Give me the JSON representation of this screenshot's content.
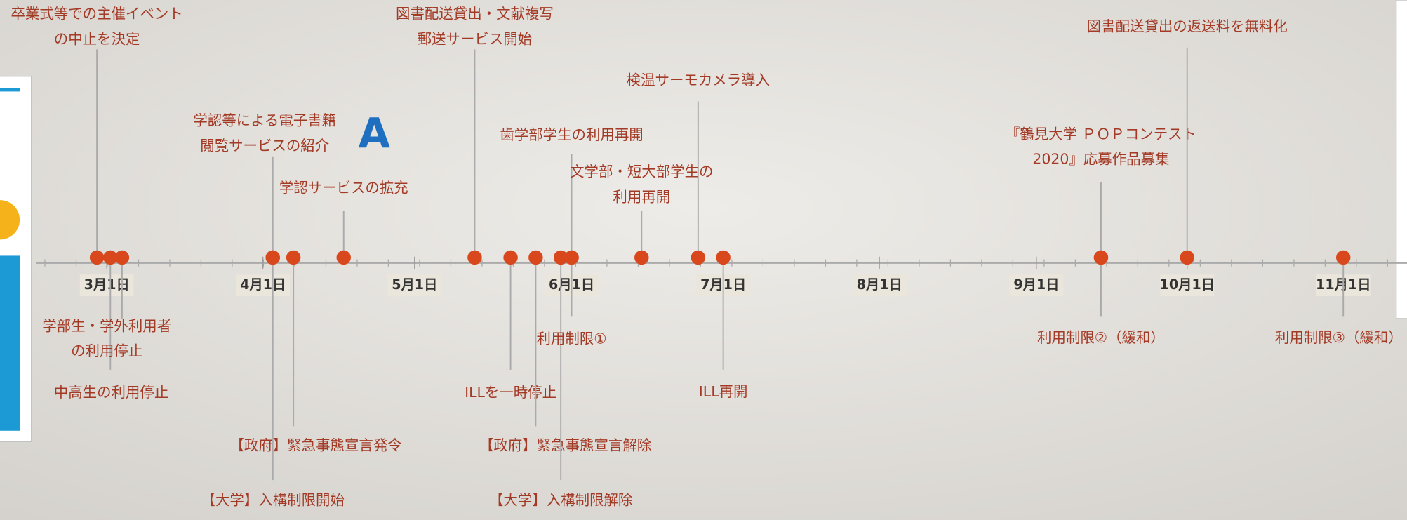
{
  "marker": "A",
  "months": [
    "3月1日",
    "4月1日",
    "5月1日",
    "6月1日",
    "7月1日",
    "8月1日",
    "9月1日",
    "10月1日",
    "11月1日"
  ],
  "events": [
    {
      "lines": [
        "卒業式等での主催イベント",
        "の中止を決定"
      ]
    },
    {
      "lines": [
        "学部生・学外利用者",
        "の利用停止"
      ]
    },
    {
      "lines": [
        "中高生の利用停止"
      ]
    },
    {
      "lines": [
        "学認等による電子書籍",
        "閲覧サービスの紹介"
      ]
    },
    {
      "lines": [
        "【大学】入構制限開始"
      ]
    },
    {
      "lines": [
        "【政府】緊急事態宣言発令"
      ]
    },
    {
      "lines": [
        "学認サービスの拡充"
      ]
    },
    {
      "lines": [
        "図書配送貸出・文献複写",
        "郵送サービス開始"
      ]
    },
    {
      "lines": [
        "ILLを一時停止"
      ]
    },
    {
      "lines": [
        "【政府】緊急事態宣言解除"
      ]
    },
    {
      "lines": [
        "【大学】入構制限解除"
      ]
    },
    {
      "lines": [
        "歯学部学生の利用再開"
      ]
    },
    {
      "lines": [
        "利用制限①"
      ]
    },
    {
      "lines": [
        "文学部・短大部学生の",
        "利用再開"
      ]
    },
    {
      "lines": [
        "検温サーモカメラ導入"
      ]
    },
    {
      "lines": [
        "ILL再開"
      ]
    },
    {
      "lines": [
        "『鶴見大学 ＰＯＰコンテスト",
        "2020』応募作品募集"
      ]
    },
    {
      "lines": [
        "利用制限②（緩和）"
      ]
    },
    {
      "lines": [
        "図書配送貸出の返送料を無料化"
      ]
    },
    {
      "lines": [
        "利用制限③（緩和）"
      ]
    }
  ]
}
